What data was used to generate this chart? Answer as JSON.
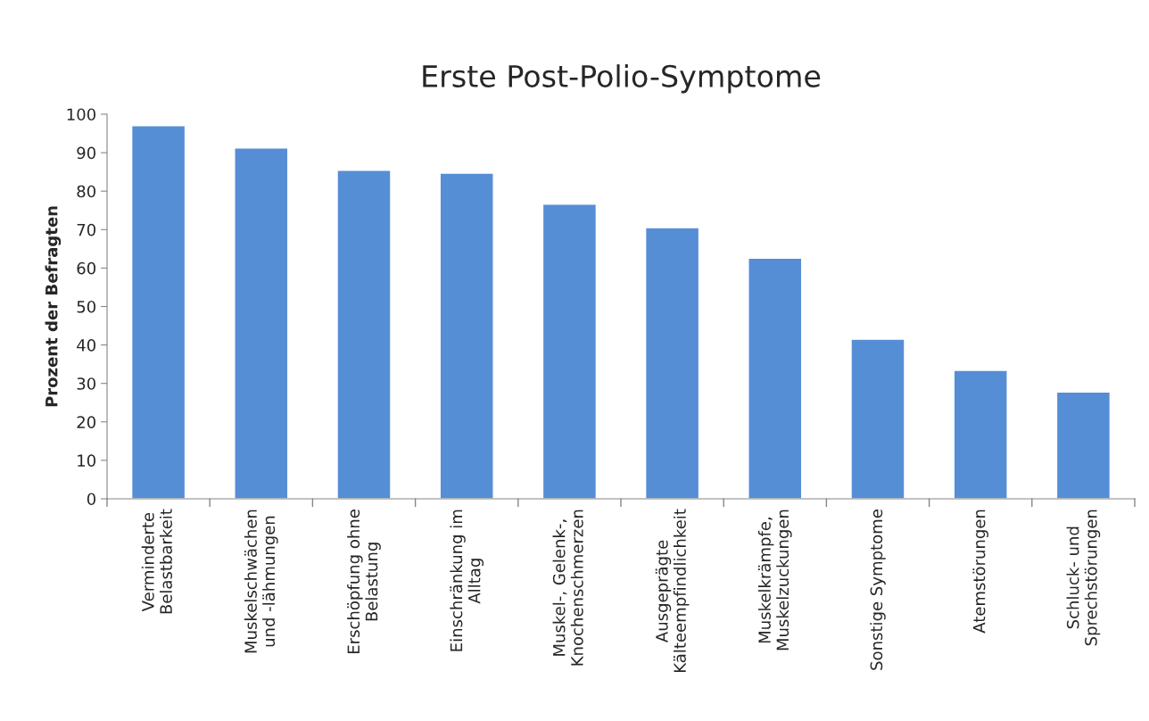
{
  "chart_data": {
    "type": "bar",
    "title": "Erste Post-Polio-Symptome",
    "ylabel": "Prozent der Befragten",
    "categories": [
      "Verminderte\nBelastbarkeit",
      "Muskelschwächen\nund -lähmungen",
      "Erschöpfung ohne\nBelastung",
      "Einschränkung im\nAlltag",
      "Muskel-, Gelenk-,\nKnochenschmerzen",
      "Ausgeprägte\nKälteempfindlichkeit",
      "Muskelkrämpfe,\nMuskelzuckungen",
      "Sonstige Symptome",
      "Atemstörungen",
      "Schluck- und\nSprechstörungen"
    ],
    "values": [
      97,
      91.2,
      85.4,
      84.7,
      76.6,
      70.5,
      62.6,
      41.5,
      33.4,
      27.8
    ],
    "color": "#558ed5",
    "ylim": [
      0,
      100
    ],
    "yticks": [
      0,
      10,
      20,
      30,
      40,
      50,
      60,
      70,
      80,
      90,
      100
    ],
    "grid": false,
    "legend": false
  }
}
